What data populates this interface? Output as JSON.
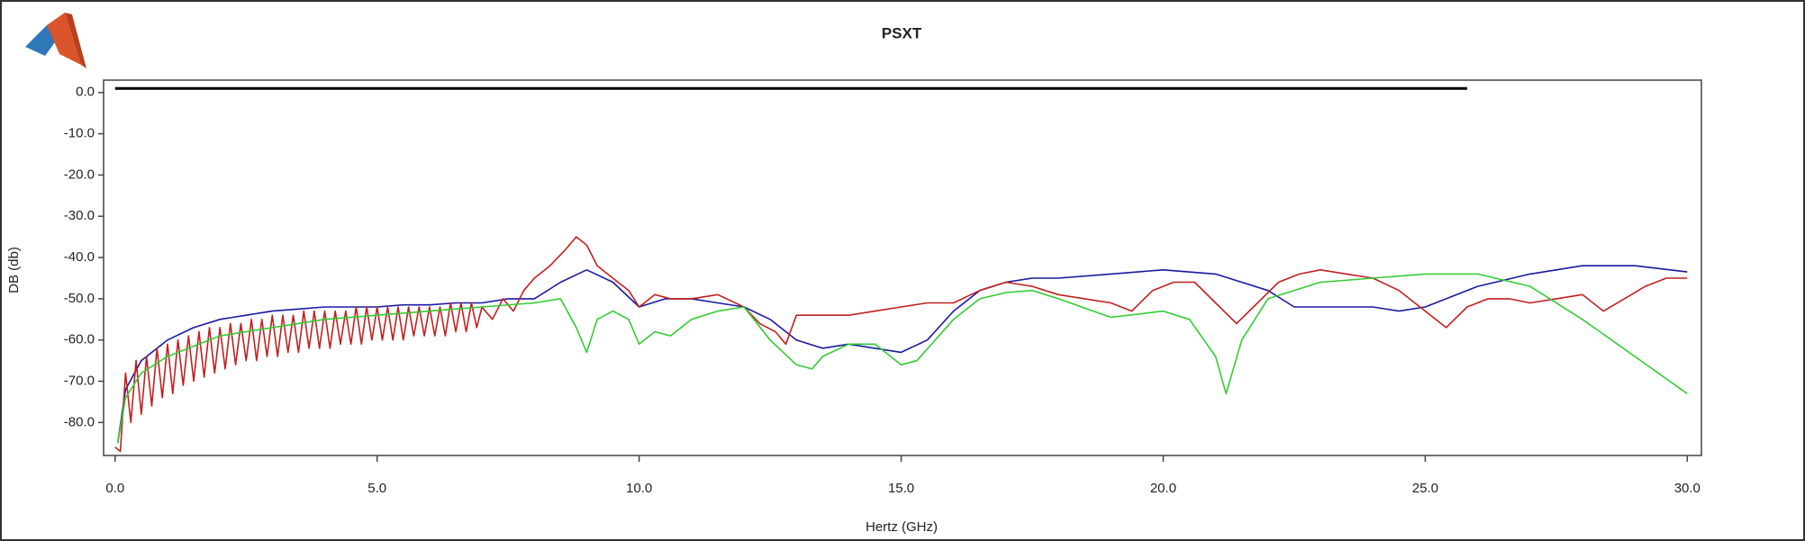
{
  "chart_data": {
    "type": "line",
    "title": "PSXT",
    "x_label": "Hertz (GHz)",
    "y_label": "DB (db)",
    "xlim": [
      -0.22,
      30.27
    ],
    "ylim": [
      -88,
      3
    ],
    "xticks": [
      {
        "value": 0,
        "label": "0.0"
      },
      {
        "value": 5,
        "label": "5.0"
      },
      {
        "value": 10,
        "label": "10.0"
      },
      {
        "value": 15,
        "label": "15.0"
      },
      {
        "value": 20,
        "label": "20.0"
      },
      {
        "value": 25,
        "label": "25.0"
      },
      {
        "value": 30,
        "label": "30.0"
      }
    ],
    "yticks": [
      {
        "value": 0,
        "label": "0.0"
      },
      {
        "value": -10,
        "label": "-10.0"
      },
      {
        "value": -20,
        "label": "-20.0"
      },
      {
        "value": -30,
        "label": "-30.0"
      },
      {
        "value": -40,
        "label": "-40.0"
      },
      {
        "value": -50,
        "label": "-50.0"
      },
      {
        "value": -60,
        "label": "-60.0"
      },
      {
        "value": -70,
        "label": "-70.0"
      },
      {
        "value": -80,
        "label": "-80.0"
      }
    ],
    "grid": false,
    "series": [
      {
        "color": "#000000",
        "x": [
          0,
          25.8
        ],
        "values": [
          1,
          1
        ]
      },
      {
        "color": "#1a1aa0",
        "x": [
          0.05,
          0.2,
          0.5,
          1,
          1.5,
          2,
          2.5,
          3,
          3.5,
          4,
          4.5,
          5,
          5.5,
          6,
          6.5,
          7,
          7.5,
          8,
          8.5,
          9,
          9.5,
          10,
          10.5,
          11,
          11.5,
          12,
          12.5,
          13,
          13.5,
          14,
          14.5,
          15,
          15.5,
          16,
          16.5,
          17,
          17.5,
          18,
          19,
          20,
          21,
          22,
          22.5,
          23,
          24,
          24.5,
          25,
          26,
          27,
          28,
          29,
          30
        ],
        "values": [
          -85,
          -72,
          -65,
          -60,
          -57,
          -55,
          -54,
          -53,
          -52.5,
          -52,
          -52,
          -52,
          -51.5,
          -51.5,
          -51,
          -51,
          -50,
          -50,
          -46,
          -43,
          -46,
          -52,
          -50,
          -50,
          -51,
          -52,
          -55,
          -60,
          -62,
          -61,
          -62,
          -63,
          -60,
          -53,
          -48,
          -46,
          -45,
          -45,
          -44,
          -43,
          -44,
          -48,
          -52,
          -52,
          -52,
          -53,
          -52,
          -47,
          -44,
          -42,
          -42,
          -43.5
        ]
      },
      {
        "color": "#c02020",
        "x": [
          0,
          0.1,
          0.2,
          0.3,
          0.4,
          0.5,
          0.6,
          0.7,
          0.8,
          0.9,
          1,
          1.1,
          1.2,
          1.3,
          1.4,
          1.5,
          1.6,
          1.7,
          1.8,
          1.9,
          2,
          2.1,
          2.2,
          2.3,
          2.4,
          2.5,
          2.6,
          2.7,
          2.8,
          2.9,
          3,
          3.1,
          3.2,
          3.3,
          3.4,
          3.5,
          3.6,
          3.7,
          3.8,
          3.9,
          4,
          4.1,
          4.2,
          4.3,
          4.4,
          4.5,
          4.6,
          4.7,
          4.8,
          4.9,
          5,
          5.1,
          5.2,
          5.3,
          5.4,
          5.5,
          5.6,
          5.7,
          5.8,
          5.9,
          6,
          6.1,
          6.2,
          6.3,
          6.4,
          6.5,
          6.6,
          6.7,
          6.8,
          6.9,
          7,
          7.2,
          7.4,
          7.6,
          7.8,
          8,
          8.3,
          8.6,
          8.8,
          9,
          9.2,
          9.5,
          9.8,
          10,
          10.3,
          10.6,
          11,
          11.5,
          12,
          12.3,
          12.6,
          12.8,
          13,
          13.5,
          14,
          14.5,
          15,
          15.5,
          16,
          16.5,
          17,
          17.5,
          18,
          18.5,
          19,
          19.4,
          19.8,
          20.2,
          20.6,
          21,
          21.4,
          21.8,
          22.2,
          22.6,
          23,
          23.5,
          24,
          24.5,
          25,
          25.4,
          25.8,
          26.2,
          26.6,
          27,
          27.5,
          28,
          28.4,
          28.8,
          29.2,
          29.6,
          30
        ],
        "values": [
          -86,
          -87,
          -68,
          -80,
          -65,
          -78,
          -64,
          -76,
          -62,
          -74,
          -61,
          -73,
          -60,
          -71,
          -59,
          -70,
          -58,
          -69,
          -57,
          -68,
          -57,
          -67,
          -56,
          -66,
          -56,
          -65,
          -55,
          -65,
          -55,
          -64,
          -54,
          -64,
          -54,
          -63,
          -54,
          -63,
          -53,
          -62,
          -53,
          -62,
          -53,
          -62,
          -53,
          -61,
          -53,
          -61,
          -52,
          -61,
          -52,
          -60,
          -52,
          -60,
          -52,
          -60,
          -52,
          -60,
          -52,
          -59,
          -52,
          -59,
          -52,
          -59,
          -52,
          -59,
          -51,
          -58,
          -51,
          -58,
          -51,
          -57,
          -52,
          -55,
          -50,
          -53,
          -48,
          -45,
          -42,
          -38,
          -35,
          -37,
          -42,
          -45,
          -48,
          -52,
          -49,
          -50,
          -50,
          -49,
          -52,
          -56,
          -58,
          -61,
          -54,
          -54,
          -54,
          -53,
          -52,
          -51,
          -51,
          -48,
          -46,
          -47,
          -49,
          -50,
          -51,
          -53,
          -48,
          -46,
          -46,
          -51,
          -56,
          -51,
          -46,
          -44,
          -43,
          -44,
          -45,
          -48,
          -53,
          -57,
          -52,
          -50,
          -50,
          -51,
          -50,
          -49,
          -53,
          -50,
          -47,
          -45,
          -45
        ]
      },
      {
        "color": "#33cc33",
        "x": [
          0.05,
          0.2,
          0.5,
          1,
          2,
          3,
          4,
          5,
          6,
          7,
          8,
          8.5,
          8.8,
          9,
          9.2,
          9.5,
          9.8,
          10,
          10.3,
          10.6,
          11,
          11.5,
          12,
          12.5,
          13,
          13.3,
          13.5,
          14,
          14.5,
          15,
          15.3,
          16,
          16.5,
          17,
          17.5,
          18,
          19,
          20,
          20.5,
          21,
          21.2,
          21.5,
          22,
          23,
          24,
          25,
          26,
          27,
          28,
          29,
          30
        ],
        "values": [
          -85,
          -74,
          -68,
          -64,
          -59,
          -57,
          -55,
          -54,
          -53,
          -52,
          -51,
          -50,
          -57,
          -63,
          -55,
          -53,
          -55,
          -61,
          -58,
          -59,
          -55,
          -53,
          -52,
          -60,
          -66,
          -67,
          -64,
          -61,
          -61,
          -66,
          -65,
          -55,
          -50,
          -48.5,
          -48,
          -50,
          -54.5,
          -53,
          -55,
          -64,
          -73,
          -60,
          -50,
          -46,
          -45,
          -44,
          -44,
          -47,
          -55,
          -64,
          -73
        ]
      }
    ]
  }
}
